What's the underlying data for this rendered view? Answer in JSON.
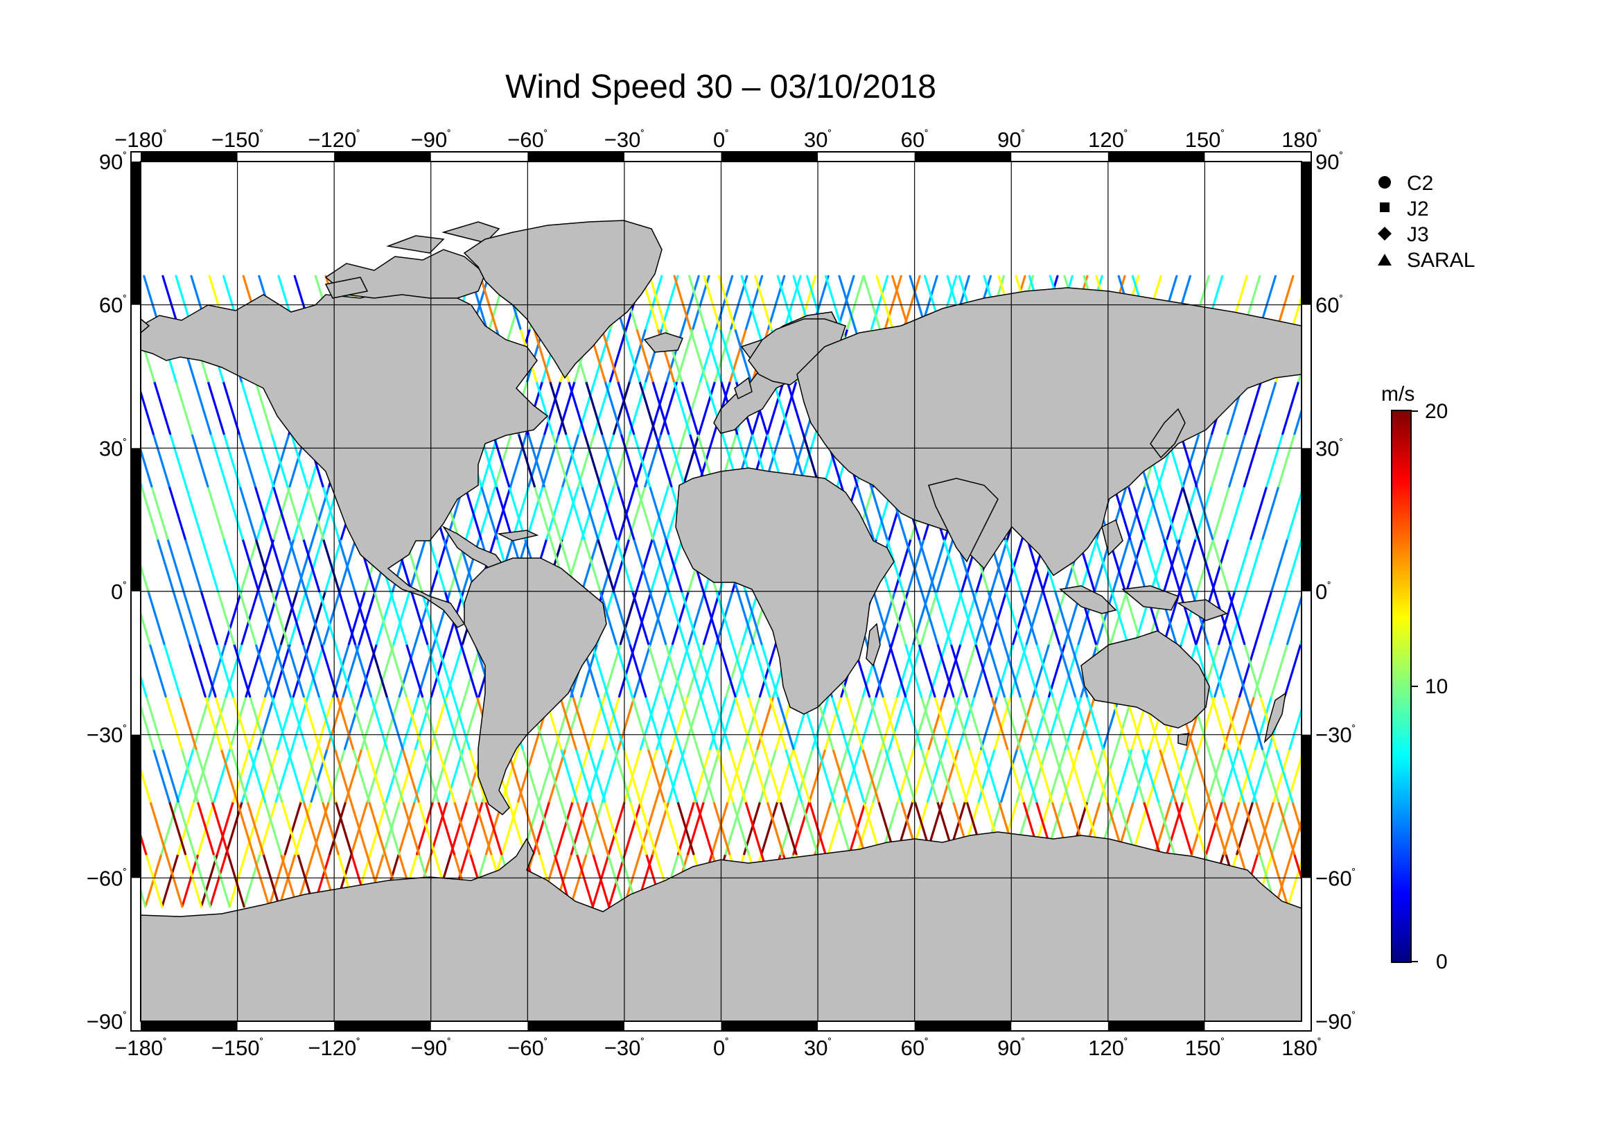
{
  "title": "Wind Speed 30 – 03/10/2018",
  "degree_mark": "˚",
  "lon_ticks": [
    "−180",
    "−150",
    "−120",
    "−90",
    "−60",
    "−30",
    "0",
    "30",
    "60",
    "90",
    "120",
    "150",
    "180"
  ],
  "lat_ticks": [
    "90",
    "60",
    "30",
    "0",
    "−30",
    "−60",
    "−90"
  ],
  "missions": [
    {
      "label": "C2",
      "marker": "circle"
    },
    {
      "label": "J2",
      "marker": "square"
    },
    {
      "label": "J3",
      "marker": "diamond"
    },
    {
      "label": "SARAL",
      "marker": "triangle"
    }
  ],
  "colorbar": {
    "unit": "m/s",
    "max_label": "20",
    "mid_label": "10",
    "min_label": "0",
    "min": 0,
    "max": 20,
    "stops": [
      "#00007f",
      "#0000ff",
      "#0080ff",
      "#00ffff",
      "#80ff80",
      "#ffff00",
      "#ff8000",
      "#ff0000",
      "#7f0000"
    ]
  },
  "colors": {
    "land": "#bebebe",
    "ocean": "#ffffff",
    "frame": "#000000"
  }
}
